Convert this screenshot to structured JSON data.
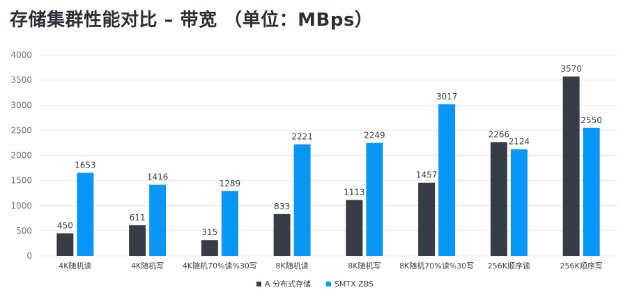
{
  "title": "存储集群性能对比 – 带宽 （单位：MBps）",
  "colors": {
    "series_a": "#373c46",
    "series_b": "#0a96f5",
    "grid": "#e8e9eb"
  },
  "chart_data": {
    "type": "bar",
    "title": "存储集群性能对比 – 带宽 （单位：MBps）",
    "categories": [
      "4K随机读",
      "4K随机写",
      "4K随机70%读%30写",
      "8K随机读",
      "8K随机写",
      "8K随机70%读%30写",
      "256K顺序读",
      "256K顺序写"
    ],
    "series": [
      {
        "name": "A 分布式存储",
        "values": [
          450,
          611,
          315,
          833,
          1113,
          1457,
          2266,
          3570
        ]
      },
      {
        "name": "SMTX ZBS",
        "values": [
          1653,
          1416,
          1289,
          2221,
          2249,
          3017,
          2124,
          2550
        ]
      }
    ],
    "yticks": [
      0,
      500,
      1000,
      1500,
      2000,
      2500,
      3000,
      3500,
      4000
    ],
    "ylim": [
      0,
      4000
    ],
    "grid": true,
    "legend_position": "bottom"
  }
}
